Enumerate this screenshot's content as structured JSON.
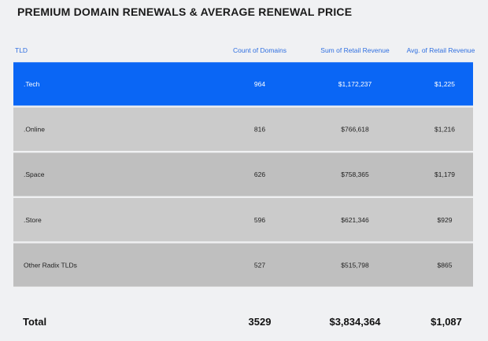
{
  "title": "PREMIUM DOMAIN RENEWALS & AVERAGE RENEWAL PRICE",
  "headers": {
    "tld": "TLD",
    "count": "Count of Domains",
    "revenue": "Sum of Retail Revenue",
    "avg": "Avg. of Retail Revenue"
  },
  "totals": {
    "label": "Total",
    "count": "3529",
    "revenue": "$3,834,364",
    "avg": "$1,087"
  },
  "colors": {
    "highlight": "#0a66f5",
    "ribbon_dark": "#b9b9b9",
    "ribbon_mid": "#c6c6c6",
    "ribbon_light": "#d7d7d7",
    "background": "#f0f1f3",
    "header_text": "#2f6fe0"
  },
  "chart_data": {
    "type": "table",
    "columns": [
      "TLD",
      "Count of Domains",
      "Sum of Retail Revenue",
      "Avg. of Retail Revenue"
    ],
    "rows": [
      {
        "tld": ".Tech",
        "count": 964,
        "revenue": 1172237,
        "avg": 1225,
        "count_label": "964",
        "revenue_label": "$1,172,237",
        "avg_label": "$1,225"
      },
      {
        "tld": ".Online",
        "count": 816,
        "revenue": 766618,
        "avg": 1216,
        "count_label": "816",
        "revenue_label": "$766,618",
        "avg_label": "$1,216"
      },
      {
        "tld": ".Space",
        "count": 626,
        "revenue": 758365,
        "avg": 1179,
        "count_label": "626",
        "revenue_label": "$758,365",
        "avg_label": "$1,179"
      },
      {
        "tld": ".Store",
        "count": 596,
        "revenue": 621346,
        "avg": 929,
        "count_label": "596",
        "revenue_label": "$621,346",
        "avg_label": "$929"
      },
      {
        "tld": "Other Radix TLDs",
        "count": 527,
        "revenue": 515798,
        "avg": 865,
        "count_label": "527",
        "revenue_label": "$515,798",
        "avg_label": "$865"
      }
    ],
    "highlighted_row": 0
  }
}
